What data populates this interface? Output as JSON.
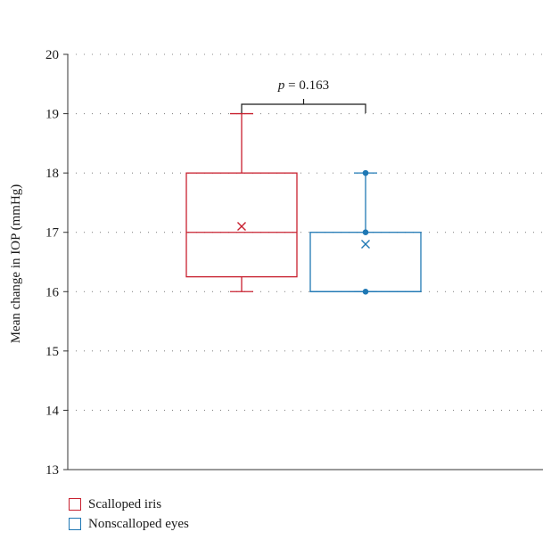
{
  "chart_data": {
    "type": "box",
    "ylabel": "Mean change in IOP (mmHg)",
    "ylim": [
      13,
      20
    ],
    "yticks": [
      13,
      14,
      15,
      16,
      17,
      18,
      19,
      20
    ],
    "grid": "horizontal dotted",
    "annotation": {
      "prefix": "p",
      "text": " = 0.163"
    },
    "series": [
      {
        "name": "Scalloped iris",
        "color": "#c8202f",
        "min": 16,
        "q1": 16.25,
        "median": 17,
        "q3": 18,
        "max": 19,
        "mean": 17.1,
        "points": []
      },
      {
        "name": "Nonscalloped eyes",
        "color": "#1f78b4",
        "min": 16,
        "q1": 16,
        "median": 16,
        "q3": 17,
        "max": 18,
        "mean": 16.8,
        "points": [
          16,
          17,
          18
        ]
      }
    ],
    "legend": "bottom-left"
  }
}
